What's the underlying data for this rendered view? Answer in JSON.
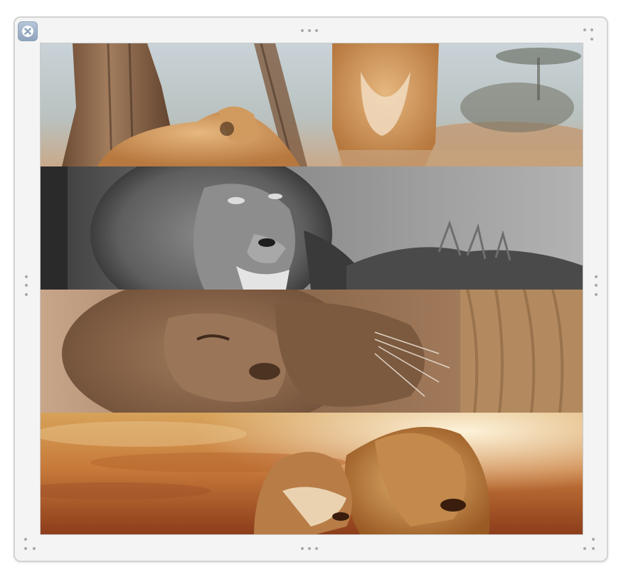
{
  "window": {
    "close_icon": "close-x-icon",
    "resize_handle_icon": "three-dot-grip-icon"
  },
  "collage": {
    "strips": [
      {
        "id": "lioness-tree",
        "style": "color"
      },
      {
        "id": "lion-grayscale",
        "style": "black-and-white"
      },
      {
        "id": "lions-nuzzling",
        "style": "sepia"
      },
      {
        "id": "lion-pair-sunset",
        "style": "warm-orange"
      }
    ]
  },
  "colors": {
    "frame_background": "#f4f4f4",
    "frame_border": "#d4d4d4",
    "close_button": "#9fb3ca"
  }
}
